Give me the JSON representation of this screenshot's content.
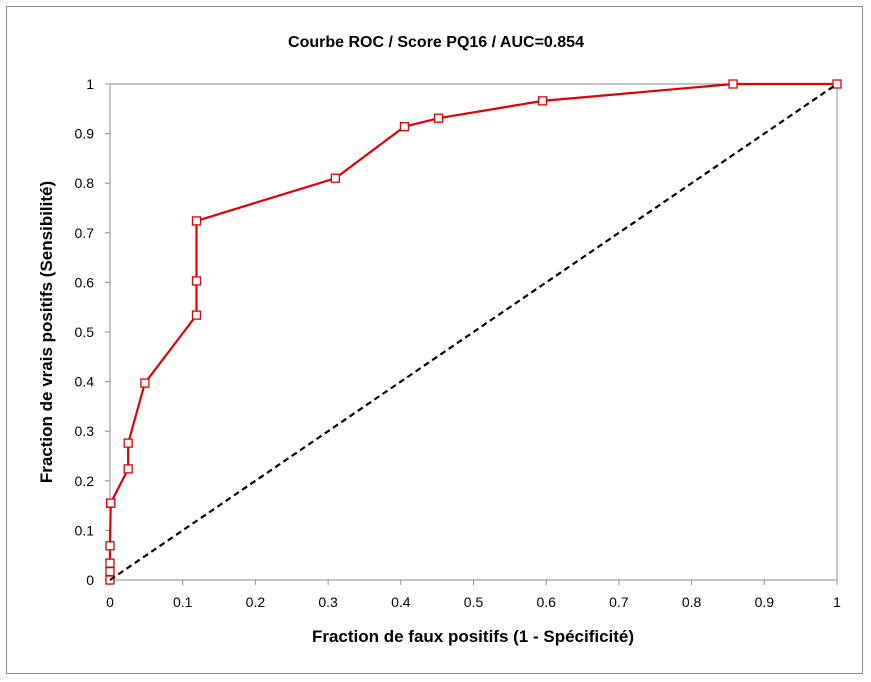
{
  "chart_data": {
    "type": "line",
    "title": "Courbe ROC / Score PQ16 / AUC=0.854",
    "xlabel": "Fraction de faux positifs (1 - Spécificité)",
    "ylabel": "Fraction de vrais positifs (Sensibilité)",
    "xlim": [
      0,
      1
    ],
    "ylim": [
      0,
      1
    ],
    "xticks": [
      "0",
      "0.1",
      "0.2",
      "0.3",
      "0.4",
      "0.5",
      "0.6",
      "0.7",
      "0.8",
      "0.9",
      "1"
    ],
    "yticks": [
      "0",
      "0.1",
      "0.2",
      "0.3",
      "0.4",
      "0.5",
      "0.6",
      "0.7",
      "0.8",
      "0.9",
      "1"
    ],
    "grid": false,
    "legend": "none",
    "series": [
      {
        "style": "solid",
        "color": "#e00000",
        "marker": "square",
        "x": [
          0,
          0,
          0,
          0,
          0.001,
          0.001,
          0.025,
          0.025,
          0.048,
          0.119,
          0.119,
          0.119,
          0.31,
          0.405,
          0.452,
          0.595,
          0.857,
          1.0
        ],
        "y": [
          0,
          0.017,
          0.034,
          0.069,
          0.155,
          0.155,
          0.224,
          0.276,
          0.397,
          0.534,
          0.603,
          0.724,
          0.81,
          0.914,
          0.931,
          0.966,
          1.0,
          1.0
        ]
      },
      {
        "style": "dashed",
        "color": "#000000",
        "marker": "none",
        "x": [
          0,
          1
        ],
        "y": [
          0,
          1
        ]
      }
    ]
  }
}
